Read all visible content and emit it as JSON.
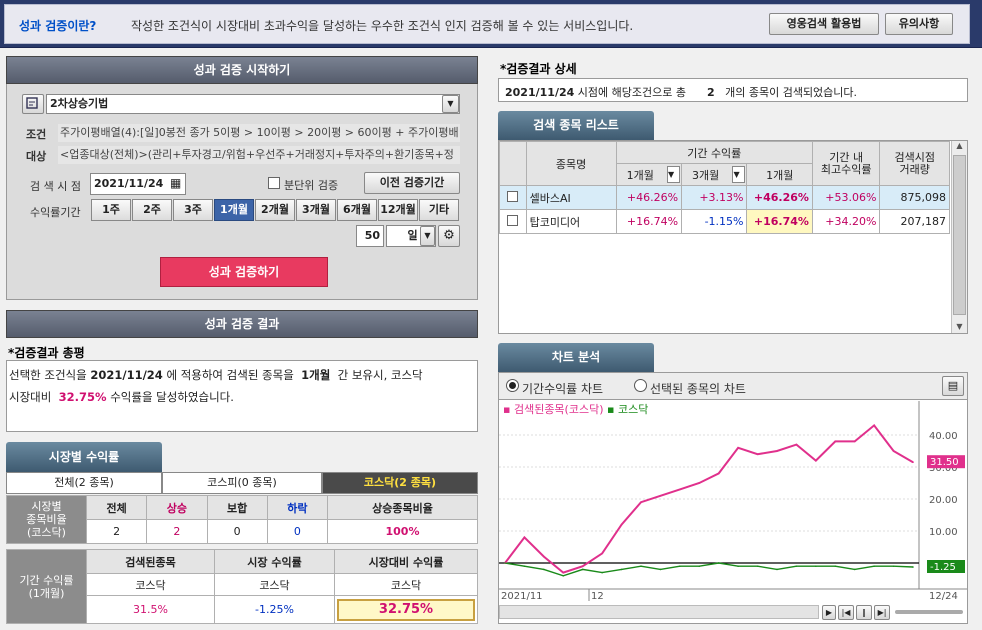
{
  "banner": {
    "title": "성과 검증이란?",
    "desc": "작성한 조건식이 시장대비 초과수익을 달성하는 우수한 조건식 인지 검증해 볼 수 있는 서비스입니다.",
    "btn_usage": "영웅검색 활용법",
    "btn_notice": "유의사항"
  },
  "start": {
    "header": "성과 검증 시작하기",
    "strategy": "2차상승기법",
    "cond_label": "조건",
    "cond_value": "주가이평배열(4):[일]0봉전 종가 5이평 > 10이평 > 20이평 > 60이평 + 주가이평배",
    "target_label": "대상",
    "target_value": "<업종대상(전체)>(관리+투자경고/위험+우선주+거래정지+투자주의+환기종목+정",
    "date_label": "검 색 시 점",
    "date_value": "2021/11/24",
    "minute_check": "분단위 검증",
    "prev_btn": "이전 검증기간",
    "period_label": "수익률기간",
    "periods": [
      "1주",
      "2주",
      "3주",
      "1개월",
      "2개월",
      "3개월",
      "6개월",
      "12개월",
      "기타"
    ],
    "selected_period": "1개월",
    "days_value": "50",
    "days_unit": "일",
    "run_btn": "성과 검증하기"
  },
  "result": {
    "header": "성과 검증 결과",
    "summary_title": "*검증결과 총평",
    "line1_a": "선택한 조건식을",
    "line1_date": "2021/11/24",
    "line1_b": "에 적용하여 검색된 종목을",
    "line1_period": "1개월",
    "line1_c": "간 보유시, 코스닥",
    "line2_a": "시장대비",
    "line2_pct": "32.75%",
    "line2_b": "수익률을 달성하였습니다."
  },
  "market": {
    "header": "시장별 수익률",
    "tabs": [
      "전체(2 종목)",
      "코스피(0 종목)",
      "코스닥(2 종목)"
    ],
    "row_label": "시장별\n종목비율\n(코스닥)",
    "cols": [
      "전체",
      "상승",
      "보합",
      "하락",
      "상승종목비율"
    ],
    "vals": [
      "2",
      "2",
      "0",
      "0",
      "100%"
    ],
    "period_label": "기간 수익률\n(1개월)",
    "ret_cols": [
      "검색된종목",
      "시장 수익률",
      "시장대비 수익률"
    ],
    "ret_sub": [
      "코스닥",
      "코스닥",
      "코스닥"
    ],
    "ret_vals": [
      "31.5%",
      "-1.25%",
      "32.75%"
    ]
  },
  "detail": {
    "title": "*검증결과 상세",
    "line_date": "2021/11/24",
    "line_a": "시점에 해당조건으로 총",
    "line_count": "2",
    "line_b": "개의 종목이 검색되었습니다."
  },
  "list": {
    "header": "검색 종목 리스트",
    "col_name": "종목명",
    "col_period": "기간 수익률",
    "col_1m": "1개월",
    "col_3m": "3개월",
    "col_1m_b": "1개월",
    "col_max": "기간 내\n최고수익률",
    "col_vol": "검색시점\n거래량",
    "rows": [
      {
        "name": "셀바스AI",
        "a": "+46.26%",
        "b": "+3.13%",
        "c": "+46.26%",
        "max": "+53.06%",
        "vol": "875,098"
      },
      {
        "name": "탑코미디어",
        "a": "+16.74%",
        "b": "-1.15%",
        "c": "+16.74%",
        "max": "+34.20%",
        "vol": "207,187"
      }
    ]
  },
  "chart": {
    "header": "차트 분석",
    "radio1": "기간수익률 차트",
    "radio2": "선택된 종목의 차트",
    "legend1": "검색된종목(코스닥)",
    "legend2": "코스닥",
    "x_start": "2021/11",
    "x_mid": "12",
    "x_end": "12/24",
    "ticks": [
      "40.00",
      "30.00",
      "20.00",
      "10.00"
    ],
    "last1": "31.50",
    "last2": "-1.25",
    "colors": {
      "series1": "#e0308c",
      "series2": "#1a8a1a"
    }
  },
  "chart_data": {
    "type": "line",
    "series": [
      {
        "name": "검색된종목(코스닥)",
        "values": [
          0,
          8,
          2,
          -3,
          -1,
          3,
          12,
          19,
          21,
          23,
          25,
          28,
          36,
          34,
          35,
          37,
          32,
          38,
          38,
          43,
          35,
          31.5
        ]
      },
      {
        "name": "코스닥",
        "values": [
          0,
          -1,
          -2,
          -4,
          -2,
          -3,
          -2,
          -1,
          -2,
          -1,
          -1,
          0,
          -1,
          -1,
          -2,
          -1,
          -1,
          -1,
          -2,
          -1,
          -1,
          -1.25
        ]
      }
    ],
    "ylim": [
      -5,
      45
    ]
  }
}
